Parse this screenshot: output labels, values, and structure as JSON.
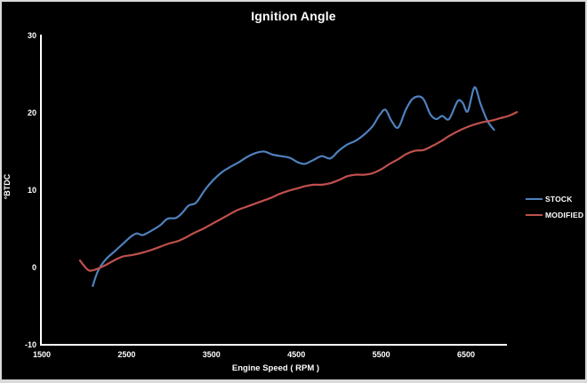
{
  "chart_data": {
    "type": "line",
    "title": "Ignition Angle",
    "xlabel": "Engine Speed ( RPM )",
    "ylabel": "°BTDC",
    "x_ticks": [
      1500,
      2500,
      3500,
      4500,
      5500,
      6500
    ],
    "y_ticks": [
      30,
      20,
      10,
      0,
      -10
    ],
    "xlim": [
      1500,
      7100
    ],
    "ylim": [
      -10,
      30
    ],
    "grid": false,
    "legend_position": "right",
    "colors": {
      "background": "#000000",
      "axis": "#ffffff",
      "text": "#f5f5f5",
      "frame_border": "#d9d9d9",
      "stock": "#4F81BD",
      "modified": "#C0504D"
    },
    "series": [
      {
        "name": "STOCK",
        "color": "#4F81BD",
        "points": [
          [
            2100,
            -2.4
          ],
          [
            2160,
            -0.5
          ],
          [
            2250,
            1.0
          ],
          [
            2350,
            2.0
          ],
          [
            2450,
            3.0
          ],
          [
            2550,
            4.0
          ],
          [
            2620,
            4.4
          ],
          [
            2690,
            4.2
          ],
          [
            2800,
            4.8
          ],
          [
            2900,
            5.5
          ],
          [
            2980,
            6.3
          ],
          [
            3080,
            6.4
          ],
          [
            3150,
            7.0
          ],
          [
            3230,
            8.0
          ],
          [
            3320,
            8.4
          ],
          [
            3420,
            10.0
          ],
          [
            3520,
            11.3
          ],
          [
            3620,
            12.3
          ],
          [
            3720,
            13.0
          ],
          [
            3820,
            13.6
          ],
          [
            3920,
            14.3
          ],
          [
            4020,
            14.8
          ],
          [
            4120,
            15.0
          ],
          [
            4220,
            14.6
          ],
          [
            4320,
            14.4
          ],
          [
            4420,
            14.2
          ],
          [
            4520,
            13.6
          ],
          [
            4600,
            13.4
          ],
          [
            4700,
            13.9
          ],
          [
            4800,
            14.4
          ],
          [
            4900,
            14.1
          ],
          [
            5000,
            15.1
          ],
          [
            5100,
            15.9
          ],
          [
            5200,
            16.4
          ],
          [
            5300,
            17.2
          ],
          [
            5400,
            18.3
          ],
          [
            5480,
            19.7
          ],
          [
            5550,
            20.4
          ],
          [
            5620,
            19.0
          ],
          [
            5700,
            18.1
          ],
          [
            5790,
            20.4
          ],
          [
            5880,
            21.9
          ],
          [
            5990,
            21.9
          ],
          [
            6080,
            19.8
          ],
          [
            6150,
            19.2
          ],
          [
            6220,
            19.6
          ],
          [
            6300,
            19.2
          ],
          [
            6400,
            21.5
          ],
          [
            6460,
            21.3
          ],
          [
            6520,
            20.2
          ],
          [
            6600,
            23.3
          ],
          [
            6670,
            21.2
          ],
          [
            6750,
            19.0
          ],
          [
            6830,
            17.8
          ]
        ]
      },
      {
        "name": "MODIFIED",
        "color": "#C0504D",
        "points": [
          [
            1950,
            0.9
          ],
          [
            2000,
            0.2
          ],
          [
            2060,
            -0.4
          ],
          [
            2150,
            -0.2
          ],
          [
            2250,
            0.3
          ],
          [
            2350,
            0.9
          ],
          [
            2450,
            1.4
          ],
          [
            2560,
            1.6
          ],
          [
            2680,
            1.9
          ],
          [
            2800,
            2.3
          ],
          [
            2900,
            2.7
          ],
          [
            3000,
            3.1
          ],
          [
            3100,
            3.4
          ],
          [
            3200,
            3.9
          ],
          [
            3300,
            4.5
          ],
          [
            3400,
            5.0
          ],
          [
            3500,
            5.6
          ],
          [
            3600,
            6.2
          ],
          [
            3700,
            6.8
          ],
          [
            3800,
            7.4
          ],
          [
            3900,
            7.8
          ],
          [
            4000,
            8.2
          ],
          [
            4100,
            8.6
          ],
          [
            4200,
            9.0
          ],
          [
            4300,
            9.5
          ],
          [
            4400,
            9.9
          ],
          [
            4500,
            10.2
          ],
          [
            4600,
            10.5
          ],
          [
            4700,
            10.7
          ],
          [
            4800,
            10.7
          ],
          [
            4900,
            10.9
          ],
          [
            5000,
            11.3
          ],
          [
            5100,
            11.8
          ],
          [
            5200,
            12.0
          ],
          [
            5300,
            12.0
          ],
          [
            5400,
            12.2
          ],
          [
            5500,
            12.7
          ],
          [
            5600,
            13.4
          ],
          [
            5700,
            14.0
          ],
          [
            5800,
            14.7
          ],
          [
            5900,
            15.1
          ],
          [
            6000,
            15.2
          ],
          [
            6100,
            15.7
          ],
          [
            6200,
            16.3
          ],
          [
            6300,
            17.0
          ],
          [
            6400,
            17.6
          ],
          [
            6500,
            18.1
          ],
          [
            6600,
            18.5
          ],
          [
            6700,
            18.8
          ],
          [
            6800,
            19.0
          ],
          [
            6900,
            19.3
          ],
          [
            7000,
            19.6
          ],
          [
            7100,
            20.1
          ]
        ]
      }
    ]
  }
}
